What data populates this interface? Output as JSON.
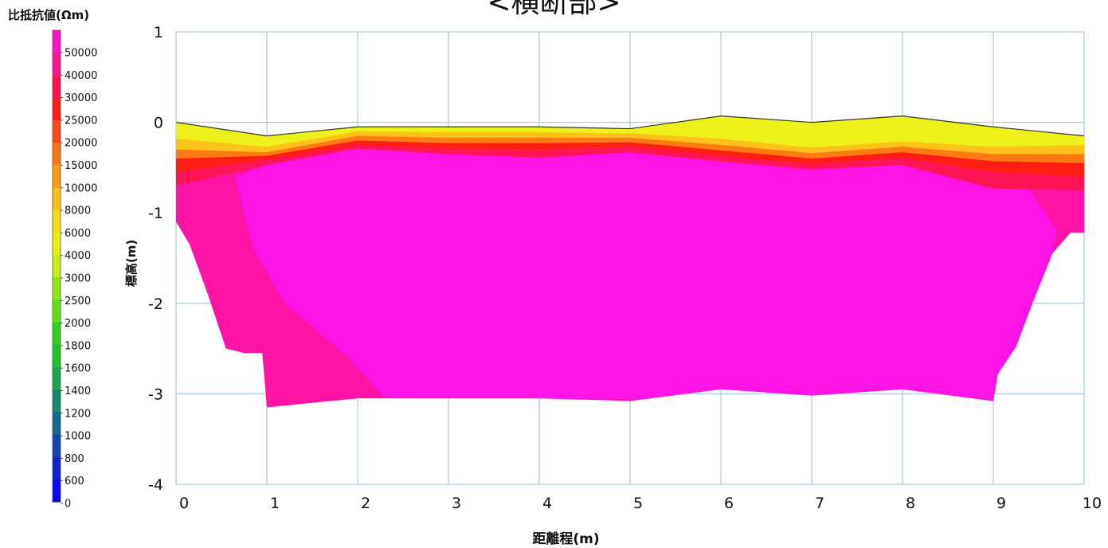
{
  "title": "<横断部>",
  "chart_data": {
    "type": "heatmap",
    "title": "<横断部>",
    "xlabel": "距離程(m)",
    "ylabel": "標高(m)",
    "xlim": [
      0,
      10
    ],
    "ylim": [
      -4,
      1
    ],
    "x_ticks": [
      "0",
      "1",
      "2",
      "3",
      "4",
      "5",
      "6",
      "7",
      "8",
      "9",
      "10"
    ],
    "y_ticks": [
      "1",
      "0",
      "-1",
      "-2",
      "-3",
      "-4"
    ],
    "grid": true,
    "colorbar": {
      "title": "比抵抗値(Ωm)",
      "labels": [
        "50000",
        "40000",
        "30000",
        "25000",
        "20000",
        "15000",
        "10000",
        "8000",
        "6000",
        "4000",
        "3000",
        "2500",
        "2000",
        "1800",
        "1600",
        "1400",
        "1200",
        "1000",
        "800",
        "600",
        "0"
      ],
      "colors": [
        "#ff14cc",
        "#ff1496",
        "#ff1455",
        "#ff1e1e",
        "#ff4a12",
        "#ff7412",
        "#ff9a12",
        "#ffbe12",
        "#f4dd12",
        "#e6ee12",
        "#c6ee12",
        "#94e812",
        "#5ee012",
        "#2ed41a",
        "#1ec42e",
        "#1aa84e",
        "#168a6e",
        "#126a8e",
        "#1246b4",
        "#1020d4",
        "#0a0af0"
      ]
    },
    "surface": {
      "x": [
        0,
        1,
        2,
        3,
        4,
        5,
        6,
        7,
        8,
        9,
        10
      ],
      "elevation": [
        0.0,
        -0.15,
        -0.05,
        -0.05,
        -0.05,
        -0.07,
        0.07,
        0.0,
        0.07,
        -0.05,
        -0.15
      ]
    },
    "bottom": {
      "x": [
        0,
        0.15,
        0.35,
        0.55,
        0.75,
        0.95,
        1.0,
        2.0,
        3.0,
        4.0,
        5.0,
        6.0,
        7.0,
        8.0,
        9.0,
        9.05,
        9.25,
        9.45,
        9.65,
        9.85,
        10.0
      ],
      "elevation": [
        -1.1,
        -1.35,
        -1.9,
        -2.5,
        -2.55,
        -2.55,
        -3.15,
        -3.05,
        -3.05,
        -3.05,
        -3.08,
        -2.95,
        -3.02,
        -2.95,
        -3.08,
        -2.78,
        -2.48,
        -1.95,
        -1.45,
        -1.22,
        -1.22
      ]
    },
    "bands": [
      {
        "resistivity": "6000-8000",
        "color": "#eef21a",
        "depth_below_surface": [
          0.18,
          0.12,
          0.05,
          0.06,
          0.06,
          0.05,
          0.25,
          0.28,
          0.28,
          0.22,
          0.1
        ]
      },
      {
        "resistivity": "10000",
        "color": "#ffc21a",
        "depth_below_surface": [
          0.3,
          0.18,
          0.1,
          0.12,
          0.12,
          0.1,
          0.32,
          0.34,
          0.34,
          0.3,
          0.2
        ]
      },
      {
        "resistivity": "15000",
        "color": "#ff7a14",
        "depth_below_surface": [
          0.4,
          0.22,
          0.15,
          0.18,
          0.18,
          0.15,
          0.38,
          0.4,
          0.4,
          0.38,
          0.3
        ]
      },
      {
        "resistivity": "25000",
        "color": "#ff1e14",
        "depth_below_surface": [
          0.55,
          0.26,
          0.2,
          0.24,
          0.26,
          0.2,
          0.44,
          0.46,
          0.46,
          0.5,
          0.45
        ]
      },
      {
        "resistivity": "30000",
        "color": "#ff1455",
        "depth_below_surface": [
          0.7,
          0.32,
          0.24,
          0.3,
          0.34,
          0.26,
          0.5,
          0.52,
          0.54,
          0.68,
          0.6
        ]
      }
    ],
    "core": {
      "resistivity": "50000",
      "color": "#ff14e6"
    },
    "flank": {
      "resistivity": "40000",
      "color": "#ff14a6"
    }
  }
}
